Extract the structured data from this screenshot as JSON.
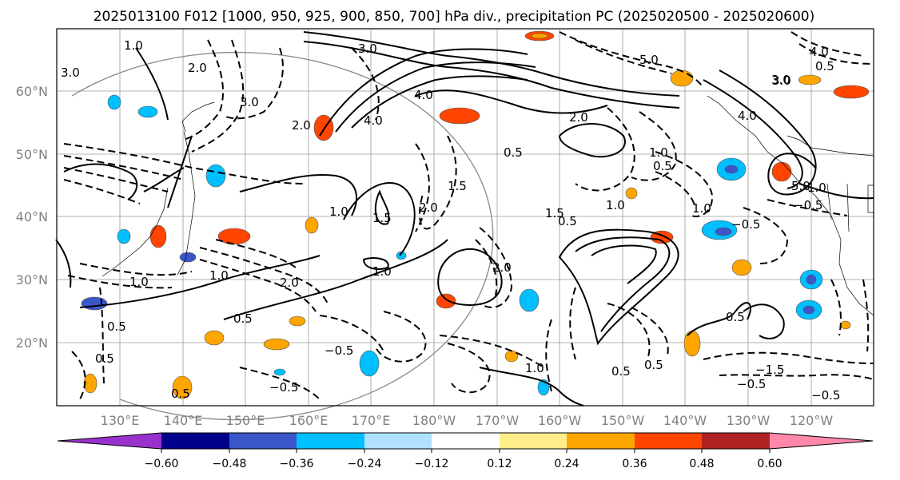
{
  "title": "2025013100 F012 [1000, 950, 925, 900, 850, 700] hPa div., precipitation PC (2025020500 - 2025020600)",
  "lat_ticks": [
    "60°N",
    "50°N",
    "40°N",
    "30°N",
    "20°N"
  ],
  "lon_ticks": [
    "130°E",
    "140°E",
    "150°E",
    "160°E",
    "170°E",
    "180°W",
    "170°W",
    "160°W",
    "150°W",
    "140°W",
    "130°W",
    "120°W"
  ],
  "colorbar": {
    "colors": [
      "#9932cc",
      "#00008b",
      "#3a56c9",
      "#00bfff",
      "#b0e2ff",
      "#ffffff",
      "#ffec8b",
      "#ffa500",
      "#ff4500",
      "#b22222",
      "#ff88aa"
    ],
    "labels": [
      "−0.60",
      "−0.48",
      "−0.36",
      "−0.24",
      "−0.12",
      "0.12",
      "0.24",
      "0.36",
      "0.48",
      "0.60"
    ]
  },
  "contour_labels": [
    "3.0",
    "3.0",
    "3.0",
    "3.0",
    "5.0",
    "5.0",
    "4.0",
    "4.0",
    "4.0",
    "4.0",
    "3.0",
    "2.0",
    "2.0",
    "2.0",
    "1.0",
    "1.0",
    "1.0",
    "1.0",
    "1.5",
    "1.5",
    "1.5",
    "1.0",
    "0.5",
    "0.5",
    "0.5",
    "0.5",
    "0.5",
    "0.5",
    "0.5",
    "0.5",
    "0.5",
    "2.0",
    "1.0",
    "1.0",
    "0.5",
    "1.0",
    "2.0",
    "2.0",
    "1.0",
    "1.0",
    "0.5",
    "−0.5",
    "−0.5",
    "−0.5",
    "−0.5",
    "−0.5",
    "−0.5",
    "−1.5"
  ]
}
